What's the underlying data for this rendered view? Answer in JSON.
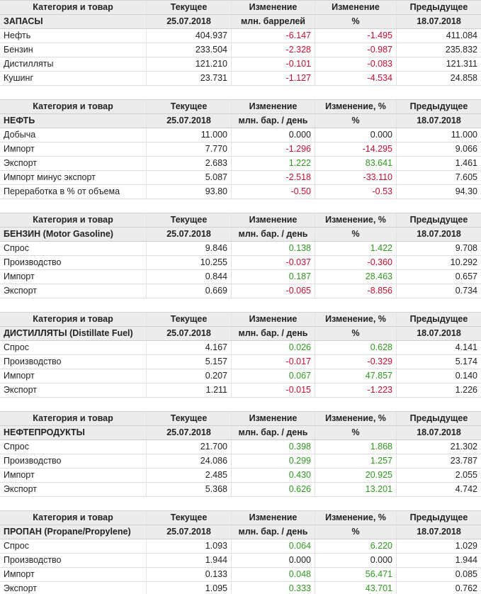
{
  "tables": [
    {
      "header": [
        [
          "Категория и товар",
          "Текущее",
          "Изменение",
          "Изменение",
          "Предыдущее"
        ],
        [
          "ЗАПАСЫ",
          "25.07.2018",
          "млн. баррелей",
          "%",
          "18.07.2018"
        ]
      ],
      "rows": [
        [
          "Нефть",
          "404.937",
          "-6.147",
          "-1.495",
          "411.084"
        ],
        [
          "Бензин",
          "233.504",
          "-2.328",
          "-0.987",
          "235.832"
        ],
        [
          "Дистилляты",
          "121.210",
          "-0.101",
          "-0.083",
          "121.311"
        ],
        [
          "Кушинг",
          "23.731",
          "-1.127",
          "-4.534",
          "24.858"
        ]
      ]
    },
    {
      "header": [
        [
          "Категория и товар",
          "Текущее",
          "Изменение",
          "Изменение, %",
          "Предыдущее"
        ],
        [
          "НЕФТЬ",
          "25.07.2018",
          "млн. бар. / день",
          "%",
          "18.07.2018"
        ]
      ],
      "rows": [
        [
          "Добыча",
          "11.000",
          "0.000",
          "0.000",
          "11.000"
        ],
        [
          "Импорт",
          "7.770",
          "-1.296",
          "-14.295",
          "9.066"
        ],
        [
          "Экспорт",
          "2.683",
          "1.222",
          "83.641",
          "1.461"
        ],
        [
          "Импорт минус экспорт",
          "5.087",
          "-2.518",
          "-33.110",
          "7.605"
        ],
        [
          "Переработка в % от объема",
          "93.80",
          "-0.50",
          "-0.53",
          "94.30"
        ]
      ]
    },
    {
      "header": [
        [
          "Категория и товар",
          "Текущее",
          "Изменение",
          "Изменение, %",
          "Предыдущее"
        ],
        [
          "БЕНЗИН (Motor Gasoline)",
          "25.07.2018",
          "млн. бар. / день",
          "%",
          "18.07.2018"
        ]
      ],
      "rows": [
        [
          "Спрос",
          "9.846",
          "0.138",
          "1.422",
          "9.708"
        ],
        [
          "Производство",
          "10.255",
          "-0.037",
          "-0.360",
          "10.292"
        ],
        [
          "Импорт",
          "0.844",
          "0.187",
          "28.463",
          "0.657"
        ],
        [
          "Экспорт",
          "0.669",
          "-0.065",
          "-8.856",
          "0.734"
        ]
      ]
    },
    {
      "header": [
        [
          "Категория и товар",
          "Текущее",
          "Изменение",
          "Изменение, %",
          "Предыдущее"
        ],
        [
          "ДИСТИЛЛЯТЫ (Distillate Fuel)",
          "25.07.2018",
          "млн. бар. / день",
          "%",
          "18.07.2018"
        ]
      ],
      "rows": [
        [
          "Спрос",
          "4.167",
          "0.026",
          "0.628",
          "4.141"
        ],
        [
          "Производство",
          "5.157",
          "-0.017",
          "-0.329",
          "5.174"
        ],
        [
          "Импорт",
          "0.207",
          "0.067",
          "47.857",
          "0.140"
        ],
        [
          "Экспорт",
          "1.211",
          "-0.015",
          "-1.223",
          "1.226"
        ]
      ]
    },
    {
      "header": [
        [
          "Категория и товар",
          "Текущее",
          "Изменение",
          "Изменение, %",
          "Предыдущее"
        ],
        [
          "НЕФТЕПРОДУКТЫ",
          "25.07.2018",
          "млн. бар. / день",
          "%",
          "18.07.2018"
        ]
      ],
      "rows": [
        [
          "Спрос",
          "21.700",
          "0.398",
          "1.868",
          "21.302"
        ],
        [
          "Производство",
          "24.086",
          "0.299",
          "1.257",
          "23.787"
        ],
        [
          "Импорт",
          "2.485",
          "0.430",
          "20.925",
          "2.055"
        ],
        [
          "Экспорт",
          "5.368",
          "0.626",
          "13.201",
          "4.742"
        ]
      ]
    },
    {
      "header": [
        [
          "Категория и товар",
          "Текущее",
          "Изменение",
          "Изменение, %",
          "Предыдущее"
        ],
        [
          "ПРОПАН (Propane/Propylene)",
          "25.07.2018",
          "млн. бар. / день",
          "%",
          "18.07.2018"
        ]
      ],
      "rows": [
        [
          "Спрос",
          "1.093",
          "0.064",
          "6.220",
          "1.029"
        ],
        [
          "Производство",
          "1.944",
          "0.000",
          "0.000",
          "1.944"
        ],
        [
          "Импорт",
          "0.133",
          "0.048",
          "56.471",
          "0.085"
        ],
        [
          "Экспорт",
          "1.095",
          "0.333",
          "43.701",
          "0.762"
        ]
      ]
    }
  ]
}
